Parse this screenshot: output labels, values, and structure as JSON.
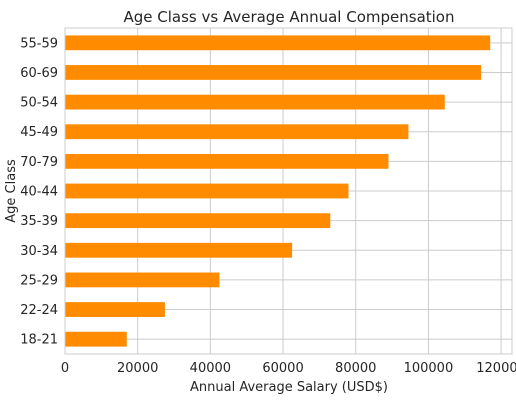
{
  "chart_data": {
    "type": "bar",
    "orientation": "horizontal",
    "title": "Age Class vs Average Annual Compensation",
    "xlabel": "Annual Average Salary (USD$)",
    "ylabel": "Age Class",
    "categories": [
      "55-59",
      "60-69",
      "50-54",
      "45-49",
      "70-79",
      "40-44",
      "35-39",
      "30-34",
      "25-29",
      "22-24",
      "18-21"
    ],
    "values": [
      117000,
      114500,
      104500,
      94500,
      89000,
      78000,
      73000,
      62500,
      42500,
      27500,
      17000
    ],
    "xlim": [
      0,
      123000
    ],
    "xticks": [
      0,
      20000,
      40000,
      60000,
      80000,
      100000,
      120000
    ],
    "xtick_labels": [
      "0",
      "20000",
      "40000",
      "60000",
      "80000",
      "100000",
      "120000"
    ],
    "grid": true,
    "legend": "none",
    "bar_color": "#ff8c00"
  }
}
